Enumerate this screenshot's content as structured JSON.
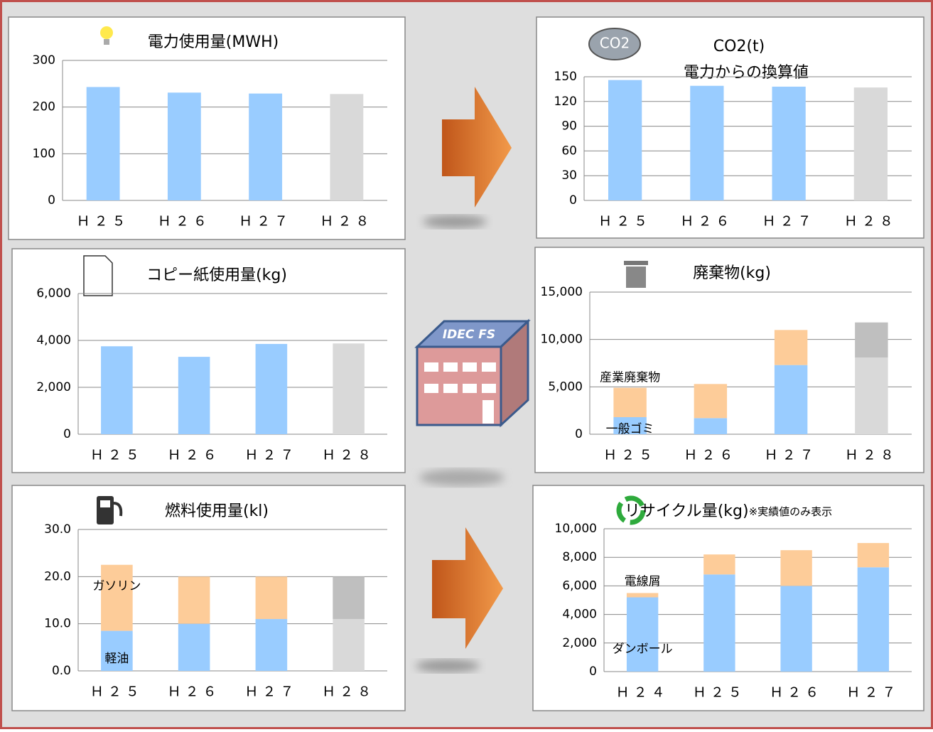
{
  "chart_data": [
    {
      "type": "bar",
      "title": "電力使用量(MWH)",
      "categories": [
        "Ｈ２５",
        "Ｈ２６",
        "Ｈ２７",
        "Ｈ２８"
      ],
      "values": [
        243,
        231,
        229,
        228
      ],
      "colors": [
        "#99ccff",
        "#99ccff",
        "#99ccff",
        "#d9d9d9"
      ],
      "ylim": [
        0,
        300
      ],
      "yticks": [
        0,
        100,
        200,
        300
      ],
      "grid": true
    },
    {
      "type": "bar",
      "title": "CO2(t)",
      "subtitle": "電力からの換算値",
      "categories": [
        "Ｈ２５",
        "Ｈ２６",
        "Ｈ２７",
        "Ｈ２８"
      ],
      "values": [
        146,
        139,
        138,
        137
      ],
      "colors": [
        "#99ccff",
        "#99ccff",
        "#99ccff",
        "#d9d9d9"
      ],
      "ylim": [
        0,
        150
      ],
      "yticks": [
        0,
        30,
        60,
        90,
        120,
        150
      ],
      "grid": true
    },
    {
      "type": "bar",
      "title": "コピー紙使用量(kg)",
      "categories": [
        "Ｈ２５",
        "Ｈ２６",
        "Ｈ２７",
        "Ｈ２８"
      ],
      "values": [
        3750,
        3300,
        3850,
        3870
      ],
      "colors": [
        "#99ccff",
        "#99ccff",
        "#99ccff",
        "#d9d9d9"
      ],
      "ylim": [
        0,
        6000
      ],
      "yticks": [
        0,
        {
          "value": 2000,
          "label": "2,000"
        },
        {
          "value": 4000,
          "label": "4,000"
        },
        {
          "value": 6000,
          "label": "6,000"
        }
      ],
      "grid": true
    },
    {
      "type": "stacked-bar",
      "title": "廃棄物(kg)",
      "categories": [
        "Ｈ２５",
        "Ｈ２６",
        "Ｈ２７",
        "Ｈ２８"
      ],
      "series": [
        {
          "name": "一般ゴミ",
          "values": [
            1800,
            1700,
            7300,
            8100
          ],
          "colors": [
            "#99ccff",
            "#99ccff",
            "#99ccff",
            "#d9d9d9"
          ]
        },
        {
          "name": "産業廃棄物",
          "values": [
            3100,
            3600,
            3700,
            3700
          ],
          "colors": [
            "#fdcc99",
            "#fdcc99",
            "#fdcc99",
            "#bfbfbf"
          ]
        }
      ],
      "ylim": [
        0,
        15000
      ],
      "yticks": [
        0,
        {
          "value": 5000,
          "label": "5,000"
        },
        {
          "value": 10000,
          "label": "10,000"
        },
        {
          "value": 15000,
          "label": "15,000"
        }
      ],
      "grid": true
    },
    {
      "type": "stacked-bar",
      "title": "燃料使用量(kl)",
      "categories": [
        "Ｈ２５",
        "Ｈ２６",
        "Ｈ２７",
        "Ｈ２８"
      ],
      "series": [
        {
          "name": "軽油",
          "values": [
            8.5,
            10,
            11,
            11
          ],
          "colors": [
            "#99ccff",
            "#99ccff",
            "#99ccff",
            "#d9d9d9"
          ]
        },
        {
          "name": "ガソリン",
          "values": [
            14,
            10,
            9,
            9
          ],
          "colors": [
            "#fdcc99",
            "#fdcc99",
            "#fdcc99",
            "#bfbfbf"
          ]
        }
      ],
      "ylim": [
        0,
        30
      ],
      "yticks": [
        {
          "value": 0,
          "label": "0.0"
        },
        {
          "value": 10,
          "label": "10.0"
        },
        {
          "value": 20,
          "label": "20.0"
        },
        {
          "value": 30,
          "label": "30.0"
        }
      ],
      "grid": true
    },
    {
      "type": "stacked-bar",
      "title": "リサイクル量(kg)",
      "note": "※実績値のみ表示",
      "categories": [
        "Ｈ２４",
        "Ｈ２５",
        "Ｈ２６",
        "Ｈ２７"
      ],
      "series": [
        {
          "name": "ダンボール",
          "values": [
            5200,
            6800,
            6000,
            7300
          ],
          "colors": [
            "#99ccff",
            "#99ccff",
            "#99ccff",
            "#99ccff"
          ]
        },
        {
          "name": "電線屑",
          "values": [
            300,
            1400,
            2500,
            1700
          ],
          "colors": [
            "#fdcc99",
            "#fdcc99",
            "#fdcc99",
            "#fdcc99"
          ]
        }
      ],
      "ylim": [
        0,
        10000
      ],
      "yticks": [
        0,
        {
          "value": 2000,
          "label": "2,000"
        },
        {
          "value": 4000,
          "label": "4,000"
        },
        {
          "value": 6000,
          "label": "6,000"
        },
        {
          "value": 8000,
          "label": "8,000"
        },
        {
          "value": 10000,
          "label": "10,000"
        }
      ],
      "grid": true
    }
  ],
  "decor": {
    "building_label": "IDEC FS",
    "co2_icon": "CO2"
  }
}
